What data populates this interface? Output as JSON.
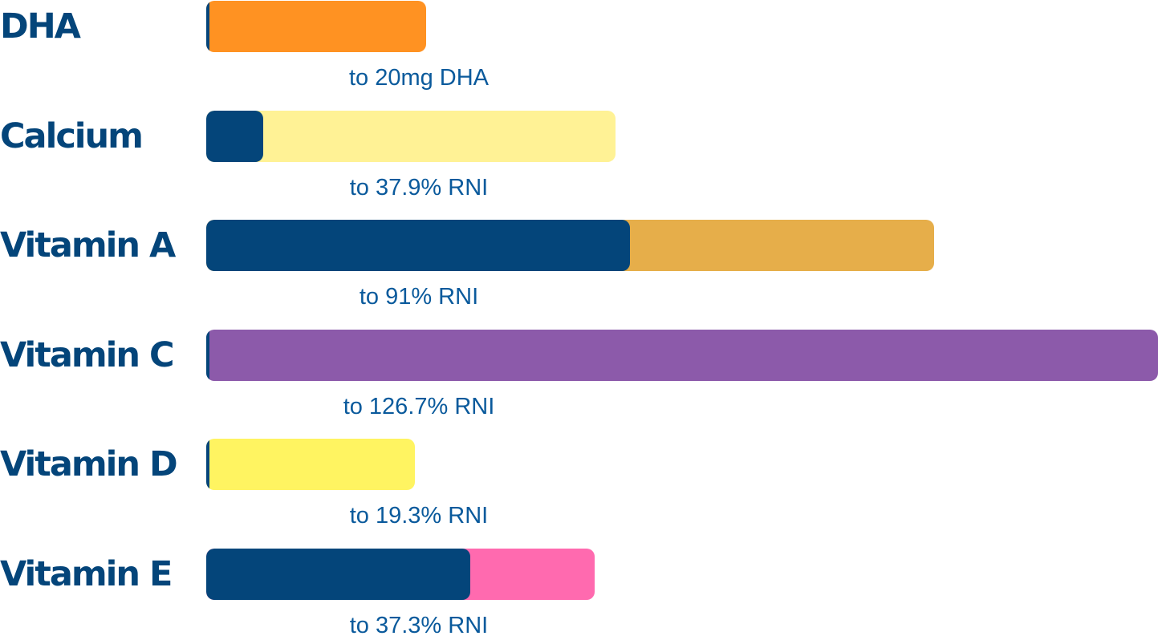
{
  "chart_data": {
    "type": "bar",
    "orientation": "horizontal",
    "categories": [
      "DHA",
      "Calcium",
      "Vitamin A",
      "Vitamin C",
      "Vitamin D",
      "Vitamin E"
    ],
    "rows": [
      {
        "name": "DHA",
        "base_fraction": 0.003,
        "total_fraction": 0.231,
        "caption": "to 20mg DHA",
        "color": "#ff9222"
      },
      {
        "name": "Calcium",
        "base_fraction": 0.06,
        "total_fraction": 0.43,
        "caption": "to 37.9% RNI",
        "color": "#fff295"
      },
      {
        "name": "Vitamin A",
        "base_fraction": 0.445,
        "total_fraction": 0.765,
        "caption": "to 91% RNI",
        "color": "#e6ae4a"
      },
      {
        "name": "Vitamin C",
        "base_fraction": 0.003,
        "total_fraction": 1.0,
        "caption": "to 126.7% RNI",
        "color": "#8c5aaa"
      },
      {
        "name": "Vitamin D",
        "base_fraction": 0.003,
        "total_fraction": 0.219,
        "caption": "to 19.3% RNI",
        "color": "#fff461"
      },
      {
        "name": "Vitamin E",
        "base_fraction": 0.277,
        "total_fraction": 0.408,
        "caption": "to 37.3% RNI",
        "color": "#ff6aaf"
      }
    ],
    "base_color": "#04457a",
    "label_color": "#04457a",
    "caption_color": "#0a5a9c"
  }
}
